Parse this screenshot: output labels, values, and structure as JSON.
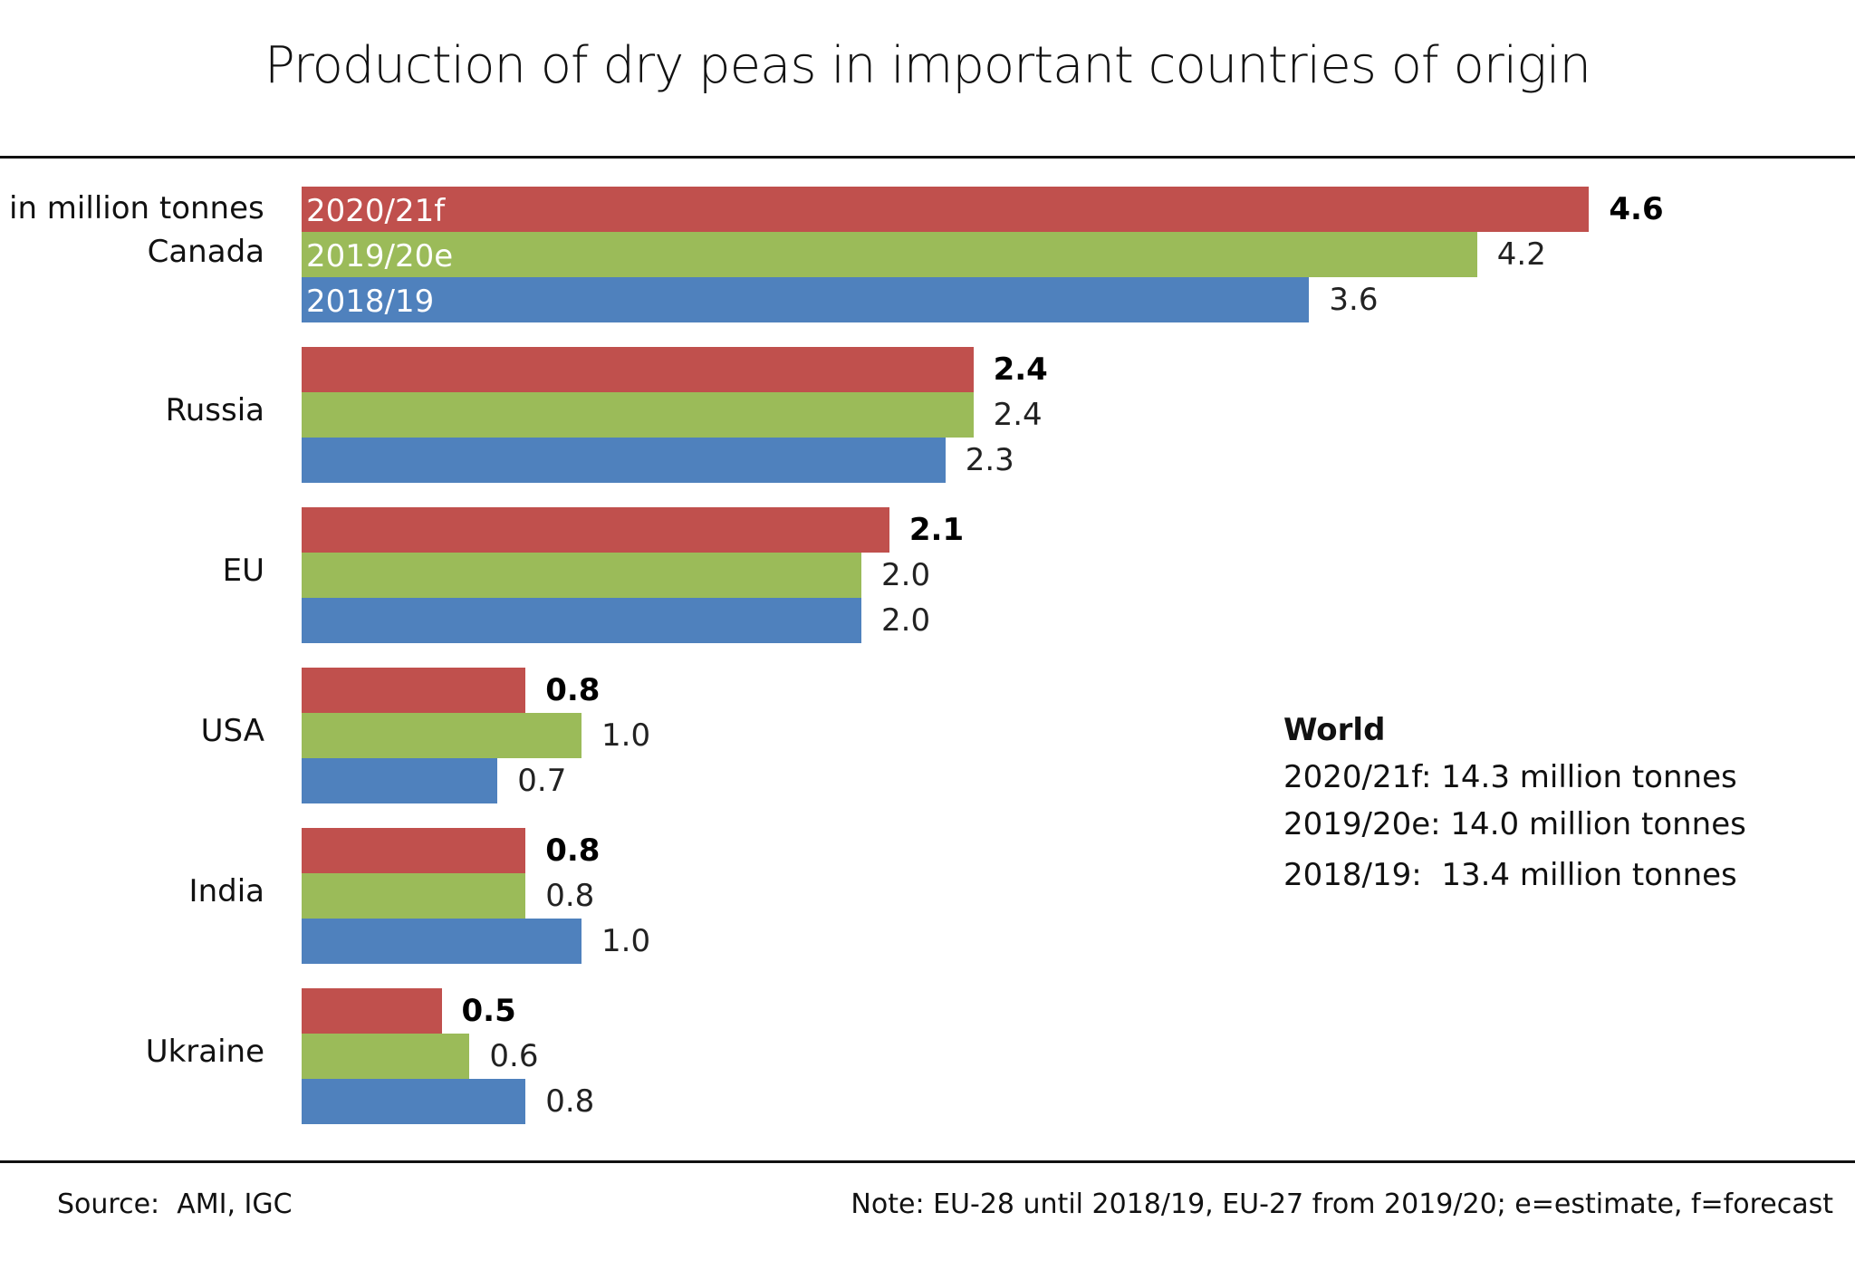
{
  "chart_data": {
    "type": "bar",
    "orientation": "horizontal",
    "title": "Production of dry peas in important countries of origin",
    "unit_label": "in million tonnes",
    "categories": [
      "Canada",
      "Russia",
      "EU",
      "USA",
      "India",
      "Ukraine"
    ],
    "series": [
      {
        "name": "2020/21f",
        "color": "#C0504D",
        "values": [
          4.6,
          2.4,
          2.1,
          0.8,
          0.8,
          0.5
        ],
        "labels": [
          "4.6",
          "2.4",
          "2.1",
          "0.8",
          "0.8",
          "0.5"
        ]
      },
      {
        "name": "2019/20e",
        "color": "#9BBB59",
        "values": [
          4.2,
          2.4,
          2.0,
          1.0,
          0.8,
          0.6
        ],
        "labels": [
          "4.2",
          "2.4",
          "2.0",
          "1.0",
          "0.8",
          "0.6"
        ]
      },
      {
        "name": "2018/19",
        "color": "#4F81BD",
        "values": [
          3.6,
          2.3,
          2.0,
          0.7,
          1.0,
          0.8
        ],
        "labels": [
          "3.6",
          "2.3",
          "2.0",
          "0.7",
          "1.0",
          "0.8"
        ]
      }
    ],
    "xlim": [
      0,
      4.6
    ],
    "grid": false,
    "legend": "inside-first-group-bars"
  },
  "world": {
    "heading": "World",
    "lines": [
      "2020/21f: 14.3 million tonnes",
      "2019/20e: 14.0 million tonnes",
      "2018/19:  13.4 million tonnes"
    ]
  },
  "footer": {
    "source": "Source:  AMI, IGC",
    "note": "Note: EU-28 until 2018/19, EU-27 from 2019/20; e=estimate, f=forecast"
  }
}
